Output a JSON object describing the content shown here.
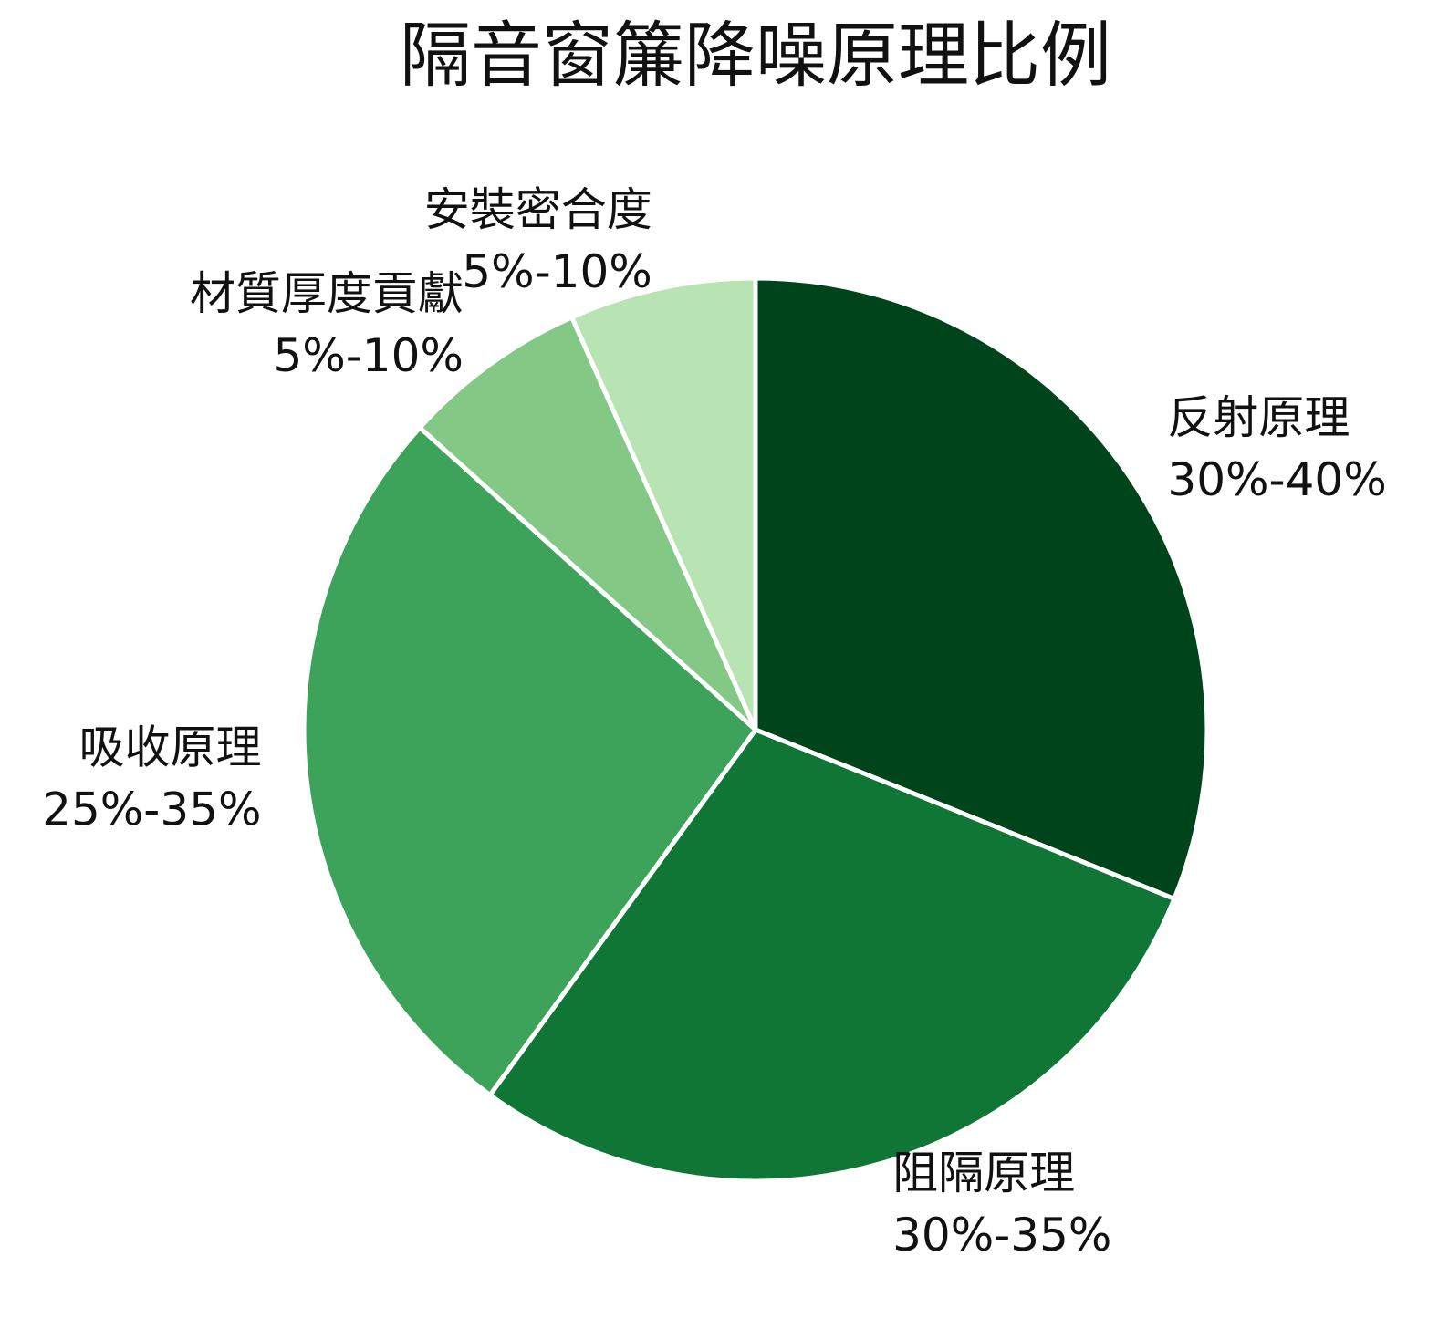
{
  "chart_data": {
    "type": "pie",
    "title": "隔音窗簾降噪原理比例",
    "categories": [
      "反射原理",
      "阻隔原理",
      "吸收原理",
      "材質厚度貢獻",
      "安裝密合度"
    ],
    "values": [
      35,
      32.5,
      30,
      7.5,
      7.5
    ],
    "value_labels": [
      "30%-40%",
      "30%-35%",
      "25%-35%",
      "5%-10%",
      "5%-10%"
    ],
    "colors": [
      "#00441b",
      "#107636",
      "#3ea35a",
      "#83c884",
      "#b8e3b3"
    ]
  }
}
